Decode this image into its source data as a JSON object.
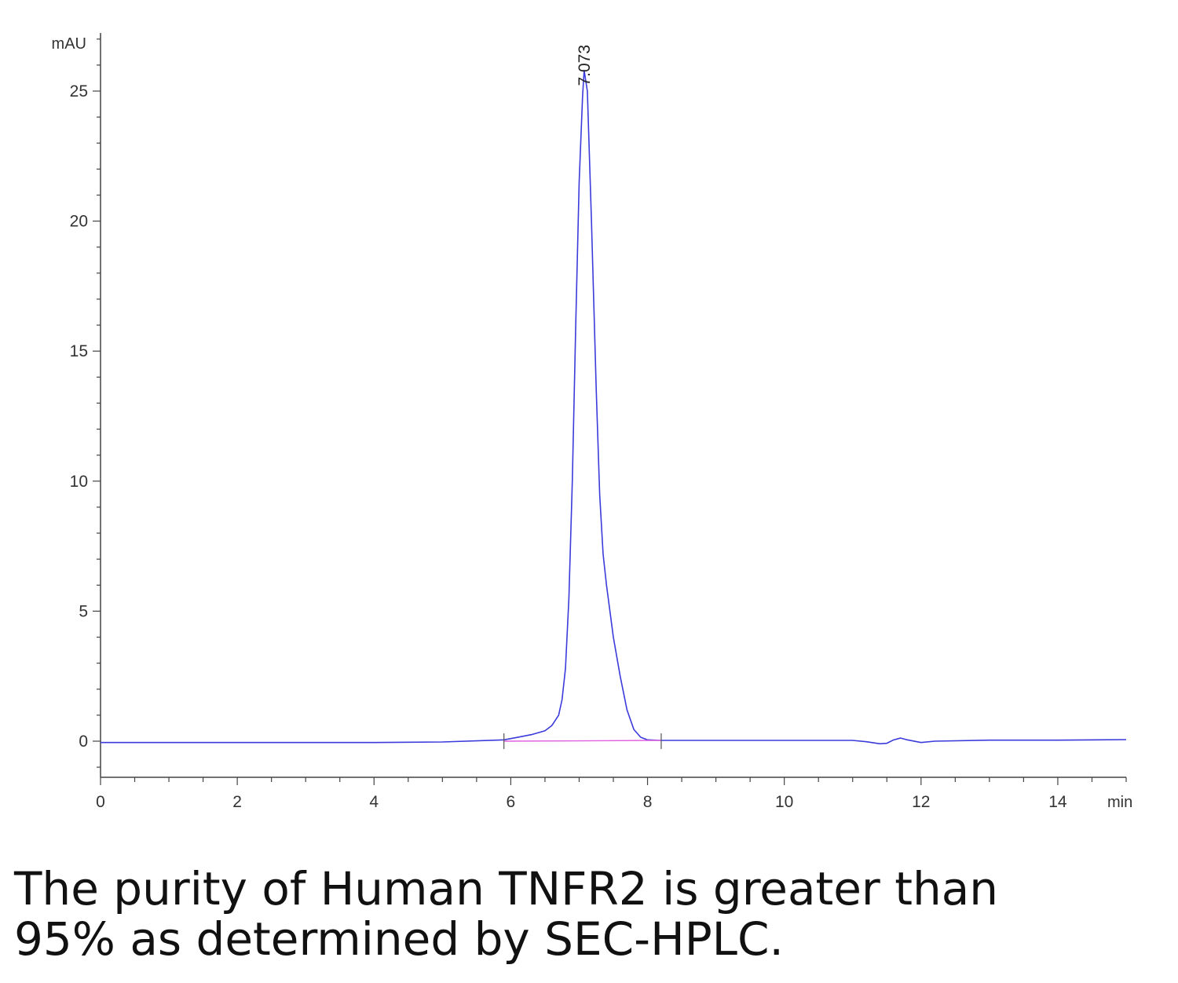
{
  "chart_data": {
    "type": "line",
    "title": "",
    "xlabel": "min",
    "ylabel": "mAU",
    "x_unit_label": "min",
    "y_unit_label": "mAU",
    "xlim": [
      0,
      15
    ],
    "ylim": [
      -1.5,
      27
    ],
    "x_ticks": [
      0,
      2,
      4,
      6,
      8,
      10,
      12,
      14
    ],
    "y_ticks": [
      0,
      5,
      10,
      15,
      20,
      25
    ],
    "grid": false,
    "series": [
      {
        "color": "#3b3bdc",
        "x": [
          0,
          2,
          4,
          5,
          5.9,
          6.1,
          6.3,
          6.5,
          6.6,
          6.7,
          6.75,
          6.8,
          6.85,
          6.9,
          6.95,
          7.0,
          7.05,
          7.073,
          7.12,
          7.18,
          7.25,
          7.3,
          7.35,
          7.4,
          7.45,
          7.5,
          7.6,
          7.7,
          7.8,
          7.9,
          8.0,
          8.2,
          9,
          10,
          11,
          11.2,
          11.4,
          11.5,
          11.6,
          11.7,
          11.8,
          12,
          12.2,
          13,
          14,
          15
        ],
        "y": [
          -0.05,
          -0.05,
          -0.05,
          -0.03,
          0.05,
          0.15,
          0.25,
          0.4,
          0.6,
          1.0,
          1.6,
          2.8,
          5.5,
          10.0,
          16.0,
          21.5,
          24.8,
          25.8,
          25.0,
          20.0,
          13.5,
          9.5,
          7.2,
          6.0,
          5.0,
          4.0,
          2.5,
          1.2,
          0.45,
          0.15,
          0.05,
          0.03,
          0.03,
          0.03,
          0.03,
          -0.02,
          -0.1,
          -0.08,
          0.05,
          0.12,
          0.05,
          -0.05,
          0.0,
          0.04,
          0.04,
          0.06
        ]
      },
      {
        "color": "#e060e0",
        "x": [
          5.9,
          8.2
        ],
        "y": [
          0.0,
          0.03
        ]
      }
    ],
    "annotations": [
      {
        "text": "7.073",
        "x": 7.073,
        "y": 25.8
      }
    ],
    "integration_marks": [
      5.9,
      8.2
    ]
  },
  "caption": {
    "line1": "The purity of Human TNFR2 is greater than",
    "line2": "95% as determined by SEC-HPLC."
  }
}
